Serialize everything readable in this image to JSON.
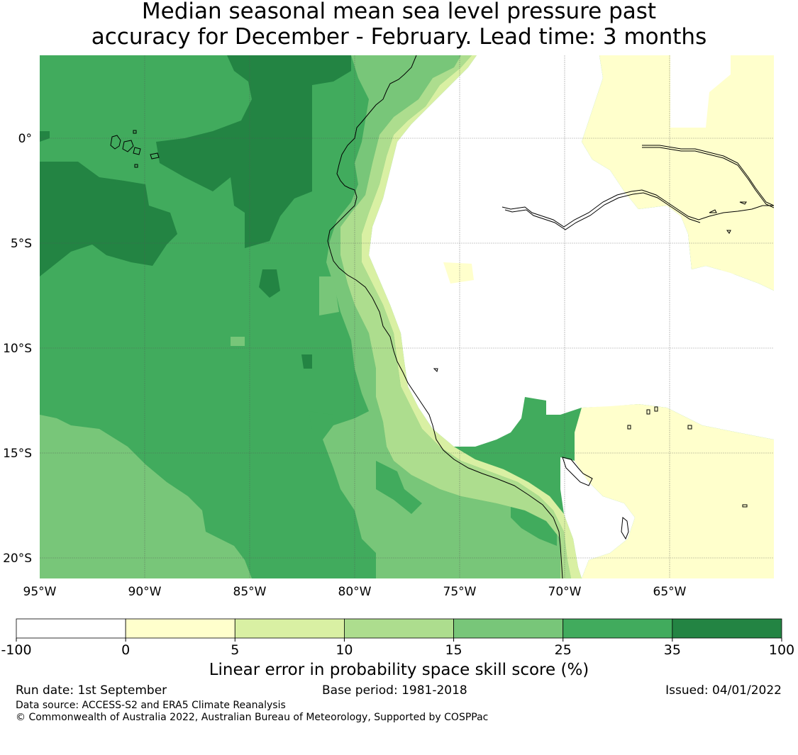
{
  "title": {
    "line1": "Median seasonal mean sea level pressure past",
    "line2": "accuracy for December - February. Lead time: 3 months"
  },
  "map": {
    "lon_labels": [
      "95°W",
      "90°W",
      "85°W",
      "80°W",
      "75°W",
      "70°W",
      "65°W"
    ],
    "lat_labels": [
      "0°",
      "5°S",
      "10°S",
      "15°S",
      "20°S"
    ],
    "lon_range": [
      -95,
      -60
    ],
    "lat_range": [
      -21,
      4
    ]
  },
  "colorbar": {
    "ticks": [
      "-100",
      "0",
      "5",
      "10",
      "15",
      "25",
      "35",
      "100"
    ],
    "colors": [
      "#ffffff",
      "#ffffcc",
      "#d9f0a3",
      "#addd8e",
      "#78c679",
      "#41ab5d",
      "#238443"
    ],
    "label": "Linear error in probability space skill score (%)"
  },
  "footer": {
    "run_date": "Run date: 1st September",
    "base_period": "Base period: 1981-2018",
    "issued": "Issued: 04/01/2022",
    "data_source": "Data source: ACCESS-S2 and ERA5 Climate Reanalysis",
    "copyright": "© Commonwealth of Australia 2022, Australian Bureau of Meteorology, Supported by COSPPac"
  }
}
